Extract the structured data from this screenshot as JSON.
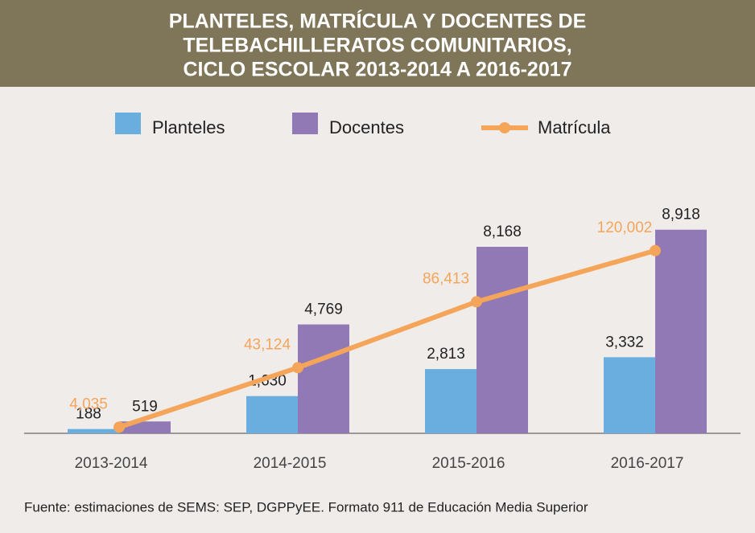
{
  "chart_data": {
    "type": "bar",
    "title": [
      "PLANTELES, MATRÍCULA Y DOCENTES DE",
      "TELEBACHILLERATOS COMUNITARIOS,",
      "CICLO ESCOLAR 2013-2014 A 2016-2017"
    ],
    "categories": [
      "2013-2014",
      "2014-2015",
      "2015-2016",
      "2016-2017"
    ],
    "series": [
      {
        "name": "Planteles",
        "color": "#6aaee0",
        "values": [
          188,
          1630,
          2813,
          3332
        ],
        "value_labels": [
          "188",
          "1,630",
          "2,813",
          "3,332"
        ]
      },
      {
        "name": "Docentes",
        "color": "#9079b5",
        "values": [
          519,
          4769,
          8168,
          8918
        ],
        "value_labels": [
          "519",
          "4,769",
          "8,168",
          "8,918"
        ]
      },
      {
        "name": "Matrícula",
        "color": "#f5a55a",
        "type": "line",
        "axis": "y2",
        "values": [
          4035,
          43124,
          86413,
          120002
        ],
        "value_labels": [
          "4,035",
          "43,124",
          "86,413",
          "120,002"
        ]
      }
    ],
    "ylim": [
      0,
      10000
    ],
    "y2lim": [
      0,
      150000
    ],
    "source": "Fuente: estimaciones de SEMS: SEP, DGPPyEE. Formato 911 de Educación Media Superior"
  }
}
